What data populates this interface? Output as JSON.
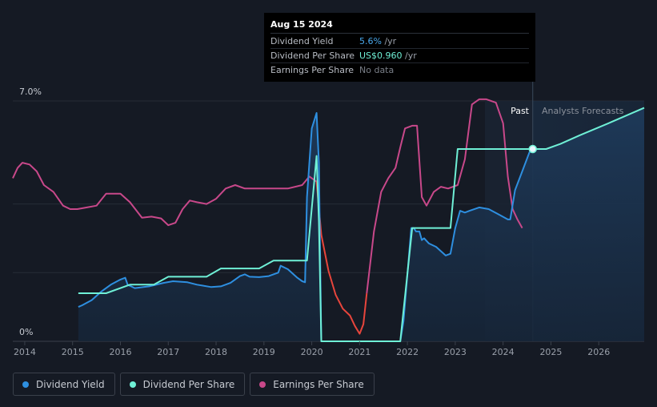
{
  "tooltip": {
    "date": "Aug 15 2024",
    "rows": [
      {
        "label": "Dividend Yield",
        "value": "5.6%",
        "suffix": " /yr"
      },
      {
        "label": "Dividend Per Share",
        "value": "US$0.960",
        "suffix": " /yr"
      },
      {
        "label": "Earnings Per Share",
        "value": "No data",
        "suffix": ""
      }
    ]
  },
  "labels": {
    "past": "Past",
    "forecast": "Analysts Forecasts"
  },
  "colors": {
    "background": "#151a24",
    "dividend_yield": "#2e8fe0",
    "dividend_per_share": "#6ff0d6",
    "earnings_per_share": "#c8488a",
    "eps_negative_segment": "#e8453c",
    "area_fill": "#1d3550"
  },
  "legend": [
    {
      "label": "Dividend Yield",
      "color": "#2e8fe0"
    },
    {
      "label": "Dividend Per Share",
      "color": "#6ff0d6"
    },
    {
      "label": "Earnings Per Share",
      "color": "#c8488a"
    }
  ],
  "chart_data": {
    "type": "line",
    "x_ticks": [
      "2014",
      "2015",
      "2016",
      "2017",
      "2018",
      "2019",
      "2020",
      "2021",
      "2022",
      "2023",
      "2024",
      "2025",
      "2026"
    ],
    "y_ticks": [
      "0%",
      "7.0%"
    ],
    "ylim": [
      0,
      7.0
    ],
    "xlim": [
      2013.75,
      2026.95
    ],
    "highlight_date": 2024.62,
    "series": [
      {
        "name": "Dividend Yield",
        "points": [
          [
            2015.12,
            1.0
          ],
          [
            2015.2,
            1.05
          ],
          [
            2015.4,
            1.2
          ],
          [
            2015.6,
            1.45
          ],
          [
            2015.8,
            1.65
          ],
          [
            2016.0,
            1.8
          ],
          [
            2016.1,
            1.85
          ],
          [
            2016.15,
            1.65
          ],
          [
            2016.3,
            1.55
          ],
          [
            2016.6,
            1.6
          ],
          [
            2016.9,
            1.7
          ],
          [
            2017.1,
            1.75
          ],
          [
            2017.4,
            1.72
          ],
          [
            2017.6,
            1.65
          ],
          [
            2017.9,
            1.58
          ],
          [
            2018.1,
            1.6
          ],
          [
            2018.3,
            1.7
          ],
          [
            2018.5,
            1.9
          ],
          [
            2018.6,
            1.95
          ],
          [
            2018.7,
            1.88
          ],
          [
            2018.9,
            1.87
          ],
          [
            2019.1,
            1.9
          ],
          [
            2019.3,
            2.0
          ],
          [
            2019.35,
            2.2
          ],
          [
            2019.5,
            2.1
          ],
          [
            2019.7,
            1.85
          ],
          [
            2019.8,
            1.75
          ],
          [
            2019.86,
            1.72
          ],
          [
            2019.9,
            4.2
          ],
          [
            2020.0,
            6.2
          ],
          [
            2020.1,
            6.65
          ],
          [
            2020.15,
            5.2
          ],
          [
            2020.2,
            0.0
          ],
          [
            2021.3,
            0.0
          ],
          [
            2021.85,
            0.0
          ],
          [
            2021.92,
            0.6
          ],
          [
            2022.08,
            3.3
          ],
          [
            2022.13,
            3.3
          ],
          [
            2022.18,
            3.2
          ],
          [
            2022.25,
            3.2
          ],
          [
            2022.3,
            2.95
          ],
          [
            2022.35,
            3.0
          ],
          [
            2022.45,
            2.85
          ],
          [
            2022.6,
            2.75
          ],
          [
            2022.8,
            2.5
          ],
          [
            2022.9,
            2.55
          ],
          [
            2023.0,
            3.3
          ],
          [
            2023.1,
            3.8
          ],
          [
            2023.2,
            3.75
          ],
          [
            2023.3,
            3.8
          ],
          [
            2023.5,
            3.9
          ],
          [
            2023.7,
            3.85
          ],
          [
            2023.9,
            3.7
          ],
          [
            2024.1,
            3.55
          ],
          [
            2024.15,
            3.55
          ],
          [
            2024.25,
            4.4
          ],
          [
            2024.4,
            4.95
          ],
          [
            2024.55,
            5.5
          ],
          [
            2024.62,
            5.6
          ]
        ]
      },
      {
        "name": "Dividend Per Share",
        "points": [
          [
            2015.12,
            1.4
          ],
          [
            2015.7,
            1.4
          ],
          [
            2016.2,
            1.65
          ],
          [
            2016.7,
            1.65
          ],
          [
            2017.0,
            1.88
          ],
          [
            2017.8,
            1.88
          ],
          [
            2018.1,
            2.12
          ],
          [
            2018.9,
            2.12
          ],
          [
            2019.2,
            2.35
          ],
          [
            2019.9,
            2.35
          ],
          [
            2020.1,
            5.4
          ],
          [
            2020.15,
            3.5
          ],
          [
            2020.2,
            0.0
          ],
          [
            2021.85,
            0.0
          ],
          [
            2022.1,
            3.3
          ],
          [
            2022.15,
            3.3
          ],
          [
            2022.9,
            3.3
          ],
          [
            2023.05,
            5.6
          ],
          [
            2024.62,
            5.6
          ],
          [
            2024.9,
            5.6
          ],
          [
            2025.2,
            5.75
          ],
          [
            2025.6,
            6.0
          ],
          [
            2026.2,
            6.35
          ],
          [
            2026.95,
            6.8
          ]
        ]
      },
      {
        "name": "Earnings Per Share",
        "points": [
          [
            2013.75,
            4.75
          ],
          [
            2013.85,
            5.05
          ],
          [
            2013.95,
            5.2
          ],
          [
            2014.1,
            5.15
          ],
          [
            2014.25,
            4.95
          ],
          [
            2014.4,
            4.55
          ],
          [
            2014.6,
            4.35
          ],
          [
            2014.8,
            3.95
          ],
          [
            2014.95,
            3.85
          ],
          [
            2015.1,
            3.85
          ],
          [
            2015.3,
            3.9
          ],
          [
            2015.5,
            3.95
          ],
          [
            2015.7,
            4.3
          ],
          [
            2016.0,
            4.3
          ],
          [
            2016.2,
            4.05
          ],
          [
            2016.45,
            3.6
          ],
          [
            2016.65,
            3.63
          ],
          [
            2016.85,
            3.58
          ],
          [
            2017.0,
            3.38
          ],
          [
            2017.15,
            3.45
          ],
          [
            2017.3,
            3.85
          ],
          [
            2017.45,
            4.1
          ],
          [
            2017.6,
            4.05
          ],
          [
            2017.8,
            4.0
          ],
          [
            2018.0,
            4.15
          ],
          [
            2018.2,
            4.45
          ],
          [
            2018.4,
            4.55
          ],
          [
            2018.6,
            4.45
          ],
          [
            2018.9,
            4.45
          ],
          [
            2019.2,
            4.45
          ],
          [
            2019.5,
            4.45
          ],
          [
            2019.8,
            4.55
          ],
          [
            2019.95,
            4.8
          ],
          [
            2020.1,
            4.65
          ],
          [
            2020.2,
            3.1
          ],
          [
            2020.35,
            2.05
          ],
          [
            2020.5,
            1.35
          ],
          [
            2020.65,
            0.95
          ],
          [
            2020.8,
            0.75
          ],
          [
            2020.9,
            0.45
          ],
          [
            2021.0,
            0.22
          ],
          [
            2021.08,
            0.5
          ],
          [
            2021.15,
            1.4
          ],
          [
            2021.3,
            3.2
          ],
          [
            2021.45,
            4.35
          ],
          [
            2021.6,
            4.75
          ],
          [
            2021.75,
            5.05
          ],
          [
            2021.85,
            5.65
          ],
          [
            2021.95,
            6.2
          ],
          [
            2022.1,
            6.28
          ],
          [
            2022.2,
            6.28
          ],
          [
            2022.3,
            4.2
          ],
          [
            2022.4,
            3.95
          ],
          [
            2022.55,
            4.35
          ],
          [
            2022.7,
            4.5
          ],
          [
            2022.85,
            4.45
          ],
          [
            2023.05,
            4.55
          ],
          [
            2023.2,
            5.3
          ],
          [
            2023.35,
            6.9
          ],
          [
            2023.5,
            7.05
          ],
          [
            2023.65,
            7.05
          ],
          [
            2023.85,
            6.95
          ],
          [
            2024.0,
            6.35
          ],
          [
            2024.1,
            4.8
          ],
          [
            2024.2,
            3.85
          ],
          [
            2024.3,
            3.55
          ],
          [
            2024.4,
            3.3
          ]
        ]
      }
    ]
  }
}
